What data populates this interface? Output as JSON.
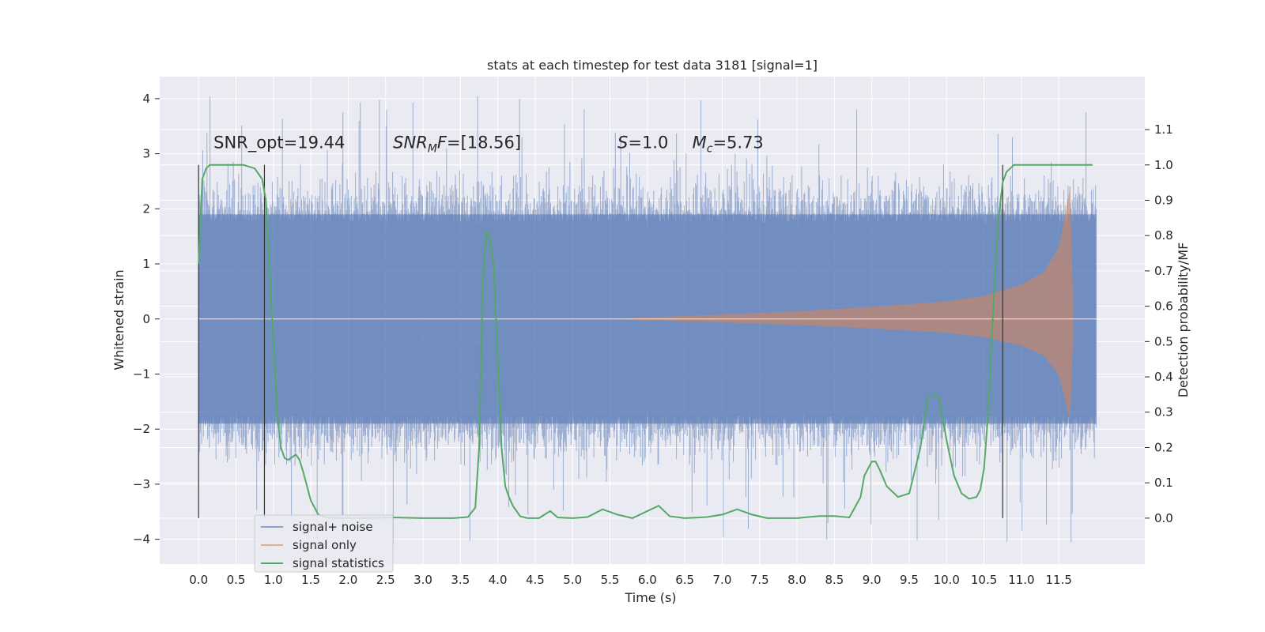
{
  "chart_data": {
    "type": "line",
    "title": "stats at each timestep for test data 3181 [signal=1]",
    "xlabel": "Time (s)",
    "ylabel": "Whitened strain",
    "y2label": "Detection probability/MF",
    "xlim": [
      -0.52,
      12.65
    ],
    "ylim": [
      -4.45,
      4.4
    ],
    "y2lim": [
      -0.13,
      1.25
    ],
    "xticks": [
      0.0,
      0.5,
      1.0,
      1.5,
      2.0,
      2.5,
      3.0,
      3.5,
      4.0,
      4.5,
      5.0,
      5.5,
      6.0,
      6.5,
      7.0,
      7.5,
      8.0,
      8.5,
      9.0,
      9.5,
      10.0,
      10.5,
      11.0,
      11.5
    ],
    "xtick_labels": [
      "0.0",
      "0.5",
      "1.0",
      "1.5",
      "2.0",
      "2.5",
      "3.0",
      "3.5",
      "4.0",
      "4.5",
      "5.0",
      "5.5",
      "6.0",
      "6.5",
      "7.0",
      "7.5",
      "8.0",
      "8.5",
      "9.0",
      "9.5",
      "10.0",
      "10.5",
      "11.0",
      "11.5"
    ],
    "yticks": [
      -4,
      -3,
      -2,
      -1,
      0,
      1,
      2,
      3,
      4
    ],
    "ytick_labels": [
      "−4",
      "−3",
      "−2",
      "−1",
      "0",
      "1",
      "2",
      "3",
      "4"
    ],
    "y2ticks": [
      0.0,
      0.1,
      0.2,
      0.3,
      0.4,
      0.5,
      0.6,
      0.7,
      0.8,
      0.9,
      1.0,
      1.1
    ],
    "y2tick_labels": [
      "0.0",
      "0.1",
      "0.2",
      "0.3",
      "0.4",
      "0.5",
      "0.6",
      "0.7",
      "0.8",
      "0.9",
      "1.0",
      "1.1"
    ],
    "grid": true,
    "legend_placement": "lower-left",
    "series": [
      {
        "name": "signal+ noise",
        "axis": "left",
        "color": "#4c72b0",
        "x_range": [
          0.0,
          12.0
        ],
        "typical_envelope": [
          -1.9,
          1.9
        ],
        "peak_range": [
          -4.1,
          4.05
        ]
      },
      {
        "name": "signal only",
        "axis": "left",
        "color": "#dd8452",
        "chirp_start": 5.5,
        "peak_time": 11.65,
        "envelope": [
          [
            6.0,
            0.03
          ],
          [
            7.0,
            0.08
          ],
          [
            8.0,
            0.14
          ],
          [
            9.0,
            0.22
          ],
          [
            10.0,
            0.32
          ],
          [
            10.5,
            0.42
          ],
          [
            11.0,
            0.62
          ],
          [
            11.3,
            0.85
          ],
          [
            11.5,
            1.3
          ],
          [
            11.6,
            2.0
          ],
          [
            11.65,
            2.4
          ]
        ]
      },
      {
        "name": "signal statistics",
        "axis": "right",
        "color": "#55a868",
        "x": [
          0.0,
          0.05,
          0.1,
          0.15,
          0.25,
          0.4,
          0.6,
          0.75,
          0.85,
          0.9,
          0.95,
          1.0,
          1.05,
          1.1,
          1.15,
          1.2,
          1.3,
          1.35,
          1.4,
          1.5,
          1.6,
          1.7,
          1.9,
          2.2,
          2.6,
          3.0,
          3.4,
          3.6,
          3.7,
          3.75,
          3.8,
          3.85,
          3.9,
          3.95,
          4.0,
          4.05,
          4.1,
          4.15,
          4.2,
          4.3,
          4.4,
          4.55,
          4.7,
          4.8,
          5.0,
          5.2,
          5.4,
          5.6,
          5.8,
          6.0,
          6.15,
          6.3,
          6.5,
          6.8,
          7.0,
          7.2,
          7.4,
          7.6,
          7.8,
          8.0,
          8.3,
          8.5,
          8.7,
          8.85,
          8.9,
          9.0,
          9.05,
          9.1,
          9.2,
          9.35,
          9.5,
          9.65,
          9.75,
          9.85,
          9.9,
          9.95,
          10.0,
          10.1,
          10.2,
          10.3,
          10.4,
          10.45,
          10.5,
          10.55,
          10.6,
          10.65,
          10.7,
          10.75,
          10.8,
          10.85,
          10.9,
          10.95,
          11.0,
          11.2,
          11.6,
          11.95
        ],
        "y": [
          0.72,
          0.96,
          0.99,
          1.0,
          1.0,
          1.0,
          1.0,
          0.99,
          0.96,
          0.9,
          0.7,
          0.5,
          0.3,
          0.2,
          0.17,
          0.165,
          0.18,
          0.165,
          0.13,
          0.05,
          0.01,
          0.002,
          0.0,
          0.0,
          0.002,
          0.0,
          0.0,
          0.003,
          0.03,
          0.2,
          0.68,
          0.81,
          0.79,
          0.7,
          0.45,
          0.2,
          0.09,
          0.06,
          0.035,
          0.005,
          0.0,
          0.0,
          0.02,
          0.002,
          0.0,
          0.003,
          0.025,
          0.01,
          0.0,
          0.02,
          0.035,
          0.005,
          0.0,
          0.003,
          0.01,
          0.025,
          0.01,
          0.0,
          0.0,
          0.0,
          0.006,
          0.006,
          0.002,
          0.06,
          0.12,
          0.16,
          0.16,
          0.14,
          0.09,
          0.06,
          0.07,
          0.2,
          0.34,
          0.35,
          0.34,
          0.28,
          0.22,
          0.12,
          0.07,
          0.055,
          0.06,
          0.08,
          0.14,
          0.28,
          0.5,
          0.7,
          0.86,
          0.95,
          0.98,
          0.99,
          1.0,
          1.0,
          1.0,
          1.0,
          1.0,
          1.0
        ]
      }
    ],
    "vlines": [
      0.0,
      0.88,
      10.75
    ],
    "annotations": [
      {
        "text": "SNR_opt=19.44",
        "x": 0.2,
        "y": 3.2
      },
      {
        "text": "SNR",
        "sub": "M",
        "tail": "F=[18.56]",
        "italic": true,
        "x": 2.6,
        "y": 3.2
      },
      {
        "text": "S",
        "tail": "=1.0",
        "italic": true,
        "x": 5.6,
        "y": 3.2
      },
      {
        "text": "M",
        "sub": "c",
        "tail": "=5.73",
        "italic": true,
        "x": 6.6,
        "y": 3.2
      }
    ]
  }
}
